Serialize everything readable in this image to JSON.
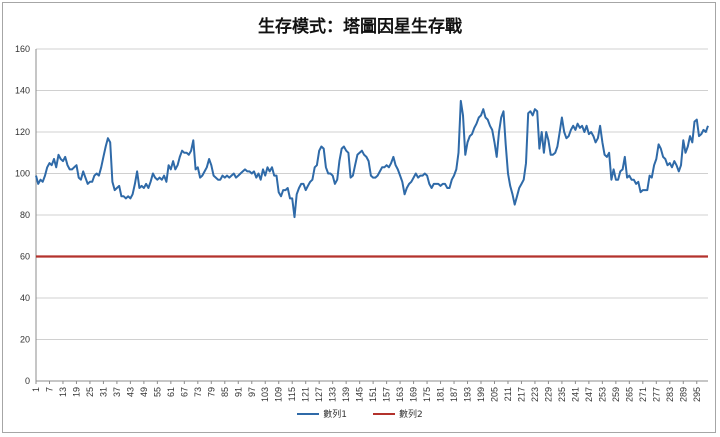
{
  "chart_data": {
    "type": "line",
    "title": "生存模式：塔圖因星生存戰",
    "ylim": [
      0,
      160
    ],
    "yticks": [
      0,
      20,
      40,
      60,
      80,
      100,
      120,
      140,
      160
    ],
    "xticks": [
      1,
      7,
      13,
      19,
      25,
      31,
      37,
      43,
      49,
      55,
      61,
      67,
      73,
      79,
      85,
      91,
      97,
      103,
      109,
      115,
      121,
      127,
      133,
      139,
      145,
      151,
      157,
      163,
      169,
      175,
      181,
      187,
      193,
      199,
      205,
      211,
      217,
      223,
      229,
      235,
      241,
      247,
      253,
      259,
      265,
      271,
      277,
      283,
      289,
      295
    ],
    "xlim": [
      1,
      300
    ],
    "grid": true,
    "legend_position": "bottom",
    "series": [
      {
        "name": "數列1",
        "color": "#2f6aa8",
        "points": [
          [
            1,
            99
          ],
          [
            2,
            95
          ],
          [
            3,
            97
          ],
          [
            4,
            96
          ],
          [
            5,
            99
          ],
          [
            6,
            103
          ],
          [
            7,
            105
          ],
          [
            8,
            104
          ],
          [
            9,
            107
          ],
          [
            10,
            103
          ],
          [
            11,
            109
          ],
          [
            12,
            107
          ],
          [
            13,
            106
          ],
          [
            14,
            108
          ],
          [
            15,
            104
          ],
          [
            16,
            102
          ],
          [
            17,
            102
          ],
          [
            18,
            103
          ],
          [
            19,
            104
          ],
          [
            20,
            98
          ],
          [
            21,
            97
          ],
          [
            22,
            101
          ],
          [
            23,
            98
          ],
          [
            24,
            95
          ],
          [
            25,
            96
          ],
          [
            26,
            96
          ],
          [
            27,
            99
          ],
          [
            28,
            100
          ],
          [
            29,
            99
          ],
          [
            30,
            103
          ],
          [
            31,
            108
          ],
          [
            32,
            113
          ],
          [
            33,
            117
          ],
          [
            34,
            115
          ],
          [
            35,
            96
          ],
          [
            36,
            92
          ],
          [
            37,
            93
          ],
          [
            38,
            94
          ],
          [
            39,
            89
          ],
          [
            40,
            89
          ],
          [
            41,
            88
          ],
          [
            42,
            89
          ],
          [
            43,
            88
          ],
          [
            44,
            90
          ],
          [
            45,
            95
          ],
          [
            46,
            101
          ],
          [
            47,
            93
          ],
          [
            48,
            94
          ],
          [
            49,
            93
          ],
          [
            50,
            95
          ],
          [
            51,
            93
          ],
          [
            52,
            96
          ],
          [
            53,
            100
          ],
          [
            54,
            98
          ],
          [
            55,
            97
          ],
          [
            56,
            98
          ],
          [
            57,
            97
          ],
          [
            58,
            99
          ],
          [
            59,
            96
          ],
          [
            60,
            104
          ],
          [
            61,
            102
          ],
          [
            62,
            106
          ],
          [
            63,
            102
          ],
          [
            64,
            104
          ],
          [
            65,
            108
          ],
          [
            66,
            111
          ],
          [
            67,
            110
          ],
          [
            68,
            110
          ],
          [
            69,
            109
          ],
          [
            70,
            111
          ],
          [
            71,
            116
          ],
          [
            72,
            102
          ],
          [
            73,
            103
          ],
          [
            74,
            98
          ],
          [
            75,
            99
          ],
          [
            76,
            101
          ],
          [
            77,
            103
          ],
          [
            78,
            107
          ],
          [
            79,
            104
          ],
          [
            80,
            99
          ],
          [
            81,
            98
          ],
          [
            82,
            97
          ],
          [
            83,
            97
          ],
          [
            84,
            99
          ],
          [
            85,
            98
          ],
          [
            86,
            99
          ],
          [
            87,
            98
          ],
          [
            88,
            99
          ],
          [
            89,
            100
          ],
          [
            90,
            98
          ],
          [
            91,
            99
          ],
          [
            92,
            100
          ],
          [
            93,
            101
          ],
          [
            94,
            102
          ],
          [
            95,
            101
          ],
          [
            96,
            101
          ],
          [
            97,
            100
          ],
          [
            98,
            101
          ],
          [
            99,
            98
          ],
          [
            100,
            100
          ],
          [
            101,
            97
          ],
          [
            102,
            102
          ],
          [
            103,
            99
          ],
          [
            104,
            103
          ],
          [
            105,
            101
          ],
          [
            106,
            103
          ],
          [
            107,
            99
          ],
          [
            108,
            99
          ],
          [
            109,
            91
          ],
          [
            110,
            89
          ],
          [
            111,
            92
          ],
          [
            112,
            92
          ],
          [
            113,
            93
          ],
          [
            114,
            88
          ],
          [
            115,
            88
          ],
          [
            116,
            79
          ],
          [
            117,
            90
          ],
          [
            118,
            93
          ],
          [
            119,
            95
          ],
          [
            120,
            95
          ],
          [
            121,
            92
          ],
          [
            122,
            94
          ],
          [
            123,
            96
          ],
          [
            124,
            97
          ],
          [
            125,
            103
          ],
          [
            126,
            104
          ],
          [
            127,
            111
          ],
          [
            128,
            113
          ],
          [
            129,
            112
          ],
          [
            130,
            103
          ],
          [
            131,
            100
          ],
          [
            132,
            100
          ],
          [
            133,
            99
          ],
          [
            134,
            95
          ],
          [
            135,
            97
          ],
          [
            136,
            106
          ],
          [
            137,
            112
          ],
          [
            138,
            113
          ],
          [
            139,
            111
          ],
          [
            140,
            110
          ],
          [
            141,
            98
          ],
          [
            142,
            99
          ],
          [
            143,
            104
          ],
          [
            144,
            109
          ],
          [
            145,
            110
          ],
          [
            146,
            111
          ],
          [
            147,
            109
          ],
          [
            148,
            108
          ],
          [
            149,
            106
          ],
          [
            150,
            99
          ],
          [
            151,
            98
          ],
          [
            152,
            98
          ],
          [
            153,
            99
          ],
          [
            154,
            101
          ],
          [
            155,
            103
          ],
          [
            156,
            103
          ],
          [
            157,
            104
          ],
          [
            158,
            103
          ],
          [
            159,
            105
          ],
          [
            160,
            108
          ],
          [
            161,
            104
          ],
          [
            162,
            102
          ],
          [
            163,
            99
          ],
          [
            164,
            96
          ],
          [
            165,
            90
          ],
          [
            166,
            93
          ],
          [
            167,
            95
          ],
          [
            168,
            96
          ],
          [
            169,
            98
          ],
          [
            170,
            100
          ],
          [
            171,
            98
          ],
          [
            172,
            99
          ],
          [
            173,
            99
          ],
          [
            174,
            100
          ],
          [
            175,
            99
          ],
          [
            176,
            95
          ],
          [
            177,
            93
          ],
          [
            178,
            95
          ],
          [
            179,
            95
          ],
          [
            180,
            95
          ],
          [
            181,
            94
          ],
          [
            182,
            95
          ],
          [
            183,
            95
          ],
          [
            184,
            93
          ],
          [
            185,
            93
          ],
          [
            186,
            97
          ],
          [
            187,
            99
          ],
          [
            188,
            102
          ],
          [
            189,
            110
          ],
          [
            190,
            135
          ],
          [
            191,
            128
          ],
          [
            192,
            109
          ],
          [
            193,
            115
          ],
          [
            194,
            118
          ],
          [
            195,
            119
          ],
          [
            196,
            122
          ],
          [
            197,
            124
          ],
          [
            198,
            127
          ],
          [
            199,
            128
          ],
          [
            200,
            131
          ],
          [
            201,
            127
          ],
          [
            202,
            126
          ],
          [
            203,
            123
          ],
          [
            204,
            121
          ],
          [
            205,
            115
          ],
          [
            206,
            108
          ],
          [
            207,
            120
          ],
          [
            208,
            127
          ],
          [
            209,
            130
          ],
          [
            210,
            114
          ],
          [
            211,
            100
          ],
          [
            212,
            94
          ],
          [
            213,
            90
          ],
          [
            214,
            85
          ],
          [
            215,
            89
          ],
          [
            216,
            93
          ],
          [
            217,
            95
          ],
          [
            218,
            97
          ],
          [
            219,
            105
          ],
          [
            220,
            129
          ],
          [
            221,
            130
          ],
          [
            222,
            128
          ],
          [
            223,
            131
          ],
          [
            224,
            130
          ],
          [
            225,
            112
          ],
          [
            226,
            120
          ],
          [
            227,
            110
          ],
          [
            228,
            120
          ],
          [
            229,
            116
          ],
          [
            230,
            109
          ],
          [
            231,
            109
          ],
          [
            232,
            110
          ],
          [
            233,
            113
          ],
          [
            234,
            120
          ],
          [
            235,
            127
          ],
          [
            236,
            120
          ],
          [
            237,
            117
          ],
          [
            238,
            118
          ],
          [
            239,
            121
          ],
          [
            240,
            123
          ],
          [
            241,
            121
          ],
          [
            242,
            124
          ],
          [
            243,
            122
          ],
          [
            244,
            123
          ],
          [
            245,
            120
          ],
          [
            246,
            123
          ],
          [
            247,
            119
          ],
          [
            248,
            120
          ],
          [
            249,
            118
          ],
          [
            250,
            115
          ],
          [
            251,
            117
          ],
          [
            252,
            123
          ],
          [
            253,
            115
          ],
          [
            254,
            109
          ],
          [
            255,
            108
          ],
          [
            256,
            110
          ],
          [
            257,
            97
          ],
          [
            258,
            102
          ],
          [
            259,
            97
          ],
          [
            260,
            97
          ],
          [
            261,
            101
          ],
          [
            262,
            102
          ],
          [
            263,
            108
          ],
          [
            264,
            98
          ],
          [
            265,
            99
          ],
          [
            266,
            97
          ],
          [
            267,
            97
          ],
          [
            268,
            95
          ],
          [
            269,
            96
          ],
          [
            270,
            91
          ],
          [
            271,
            92
          ],
          [
            272,
            92
          ],
          [
            273,
            92
          ],
          [
            274,
            99
          ],
          [
            275,
            98
          ],
          [
            276,
            104
          ],
          [
            277,
            107
          ],
          [
            278,
            114
          ],
          [
            279,
            112
          ],
          [
            280,
            108
          ],
          [
            281,
            107
          ],
          [
            282,
            104
          ],
          [
            283,
            105
          ],
          [
            284,
            103
          ],
          [
            285,
            106
          ],
          [
            286,
            104
          ],
          [
            287,
            101
          ],
          [
            288,
            104
          ],
          [
            289,
            116
          ],
          [
            290,
            110
          ],
          [
            291,
            113
          ],
          [
            292,
            118
          ],
          [
            293,
            115
          ],
          [
            294,
            125
          ],
          [
            295,
            126
          ],
          [
            296,
            118
          ],
          [
            297,
            119
          ],
          [
            298,
            121
          ],
          [
            299,
            120
          ],
          [
            300,
            123
          ]
        ]
      },
      {
        "name": "數列2",
        "color": "#b3322c",
        "points": [
          [
            1,
            60
          ],
          [
            300,
            60
          ]
        ]
      }
    ]
  }
}
